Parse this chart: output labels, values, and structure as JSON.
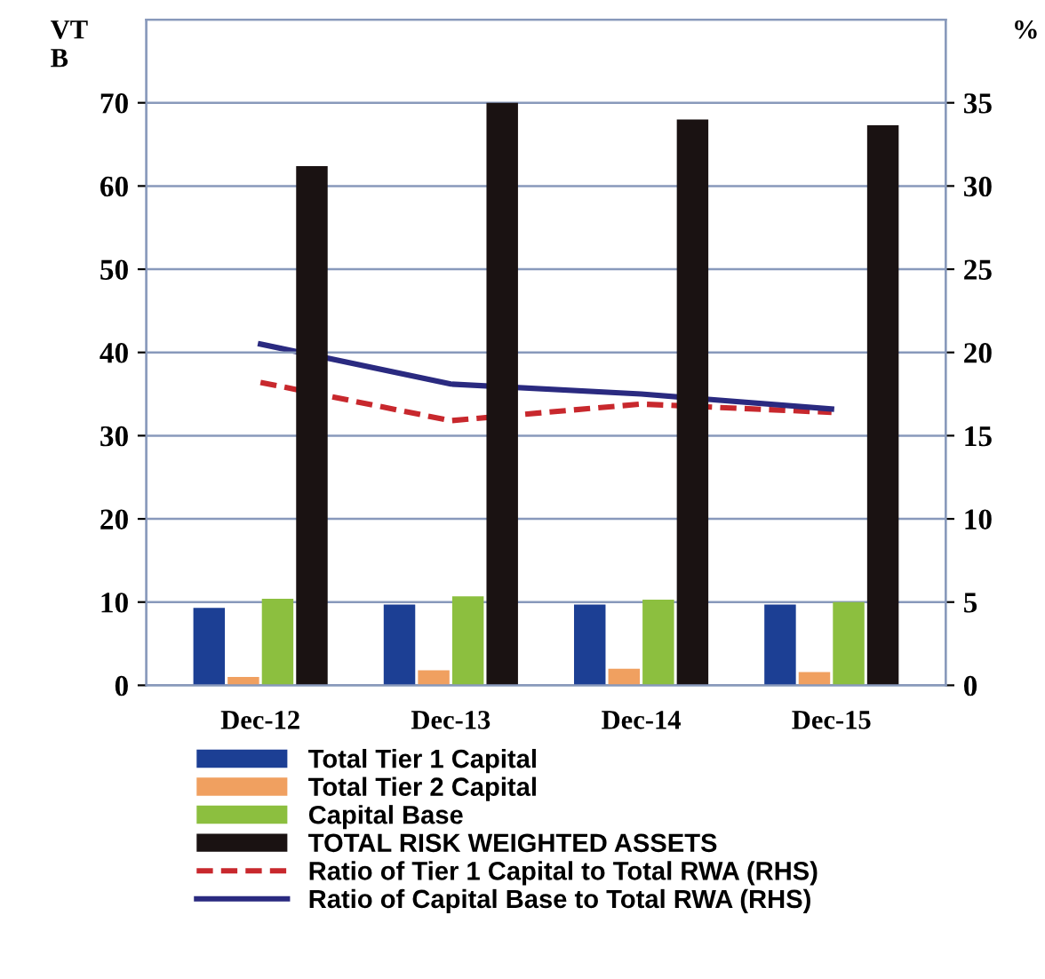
{
  "chart_data": {
    "type": "bar",
    "ylabel": "VT\nB",
    "y2label": "%",
    "categories": [
      "Dec-12",
      "Dec-13",
      "Dec-14",
      "Dec-15"
    ],
    "series": [
      {
        "name": "Total Tier 1 Capital",
        "color": "#1c3f94",
        "values": [
          9.3,
          9.7,
          9.7,
          9.7
        ]
      },
      {
        "name": "Total Tier 2 Capital",
        "color": "#f0a060",
        "values": [
          1.0,
          1.8,
          2.0,
          1.6
        ]
      },
      {
        "name": "Capital Base",
        "color": "#8cbf3f",
        "values": [
          10.4,
          10.7,
          10.3,
          10.0
        ]
      },
      {
        "name": "TOTAL RISK WEIGHTED ASSETS",
        "color": "#1a1212",
        "values": [
          62.4,
          70.0,
          68.0,
          67.3
        ]
      },
      {
        "name": "Ratio of Tier 1 Capital to Total RWA (RHS)",
        "type": "line",
        "axis": "y2",
        "line_style": "dashed",
        "color": "#c8282d",
        "values": [
          18.2,
          15.9,
          16.9,
          16.4
        ]
      },
      {
        "name": "Ratio of Capital Base to Total RWA (RHS)",
        "type": "line",
        "axis": "y2",
        "line_style": "solid",
        "color": "#2a2a80",
        "values": [
          20.5,
          18.1,
          17.5,
          16.6
        ]
      }
    ],
    "ylim": [
      0,
      80
    ],
    "yticks": [
      0,
      10,
      20,
      30,
      40,
      50,
      60,
      70
    ],
    "y2lim": [
      0,
      40
    ],
    "y2ticks": [
      0,
      5,
      10,
      15,
      20,
      25,
      30,
      35
    ],
    "grid": "y",
    "legend": "bottom"
  }
}
